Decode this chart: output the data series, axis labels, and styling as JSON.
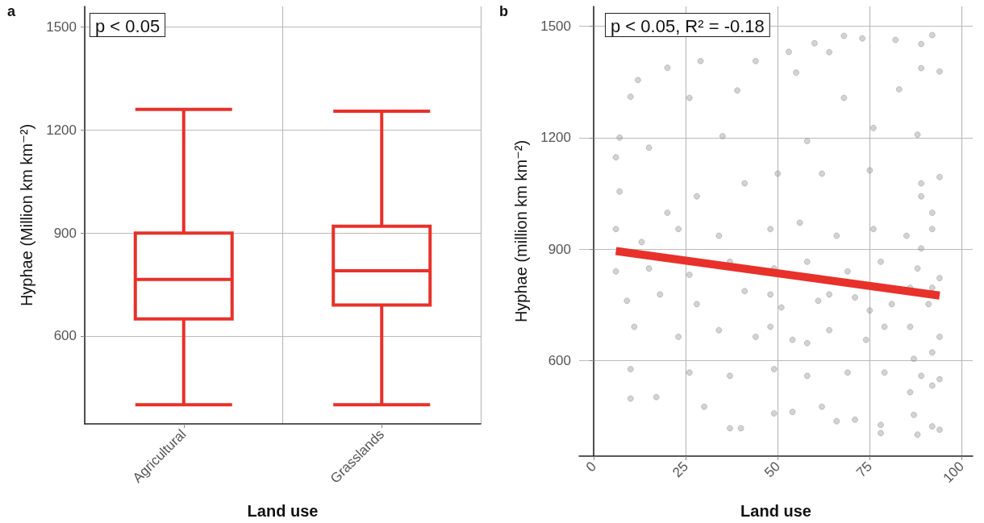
{
  "chart_data": [
    {
      "type": "box",
      "title": "a",
      "xlabel": "Land use",
      "ylabel": "Hyphae (Million km km⁻²)",
      "categories": [
        "Agricultural",
        "Grasslands"
      ],
      "color": "#e8312a",
      "boxes": [
        {
          "low": 400,
          "q1": 650,
          "median": 765,
          "q3": 900,
          "high": 1260
        },
        {
          "low": 400,
          "q1": 690,
          "median": 790,
          "q3": 920,
          "high": 1255
        }
      ],
      "ylim": [
        344,
        1560
      ],
      "yticks": [
        600,
        900,
        1200,
        1500
      ],
      "grid": true,
      "annotations": [
        "p < 0.05"
      ]
    },
    {
      "type": "scatter",
      "title": "b",
      "xlabel": "Land use",
      "ylabel": "Hyphae (million km km⁻²)",
      "xlim": [
        -4,
        103
      ],
      "xticks": [
        0,
        25,
        50,
        75,
        100
      ],
      "ylim": [
        343,
        1553
      ],
      "yticks": [
        600,
        900,
        1200,
        1500
      ],
      "grid": true,
      "annotations": [
        "p < 0.05, R² = -0.18"
      ],
      "series": [
        {
          "type": "scatter",
          "marker": "circle",
          "color": "#9e9e9e",
          "x": [
            68,
            92,
            73,
            82,
            89,
            60,
            53,
            64,
            29,
            44,
            20,
            89,
            94,
            12,
            39,
            55,
            83,
            10,
            26,
            68,
            7,
            6,
            15,
            35,
            58,
            76,
            88,
            7,
            20,
            28,
            41,
            50,
            62,
            75,
            89,
            94,
            6,
            13,
            23,
            34,
            48,
            56,
            66,
            76,
            85,
            92,
            6,
            15,
            26,
            37,
            49,
            58,
            69,
            78,
            88,
            94,
            9,
            18,
            28,
            41,
            51,
            61,
            71,
            81,
            91,
            11,
            23,
            34,
            44,
            54,
            64,
            74,
            86,
            94,
            10,
            26,
            37,
            49,
            58,
            69,
            79,
            89,
            94,
            10,
            17,
            30,
            49,
            54,
            62,
            71,
            78,
            87,
            92,
            37,
            40,
            78,
            88,
            94,
            66,
            89,
            92,
            89,
            86,
            92,
            92,
            87,
            79,
            75,
            64,
            48,
            48,
            58,
            92,
            86
          ],
          "values": [
            1474,
            1476,
            1467,
            1463,
            1452,
            1454,
            1431,
            1430,
            1406,
            1406,
            1388,
            1387,
            1378,
            1355,
            1327,
            1375,
            1330,
            1310,
            1307,
            1307,
            1200,
            1147,
            1173,
            1204,
            1191,
            1226,
            1208,
            1055,
            998,
            1042,
            1077,
            1103,
            1103,
            1112,
            1077,
            1094,
            954,
            919,
            954,
            936,
            954,
            971,
            936,
            954,
            936,
            954,
            840,
            848,
            831,
            866,
            848,
            866,
            840,
            866,
            848,
            822,
            761,
            778,
            752,
            787,
            743,
            761,
            770,
            752,
            752,
            691,
            664,
            682,
            664,
            656,
            682,
            656,
            691,
            664,
            577,
            568,
            559,
            577,
            559,
            568,
            568,
            559,
            550,
            498,
            502,
            476,
            458,
            462,
            476,
            441,
            427,
            454,
            423,
            418,
            418,
            405,
            401,
            414,
            437,
            1042,
            998,
            902,
            796,
            796,
            622,
            605,
            691,
            735,
            778,
            778,
            691,
            647,
            533,
            515
          ]
        },
        {
          "type": "line",
          "marker": "none",
          "color": "#e8312a",
          "x": [
            6,
            94
          ],
          "values": [
            895,
            775
          ]
        }
      ]
    }
  ]
}
